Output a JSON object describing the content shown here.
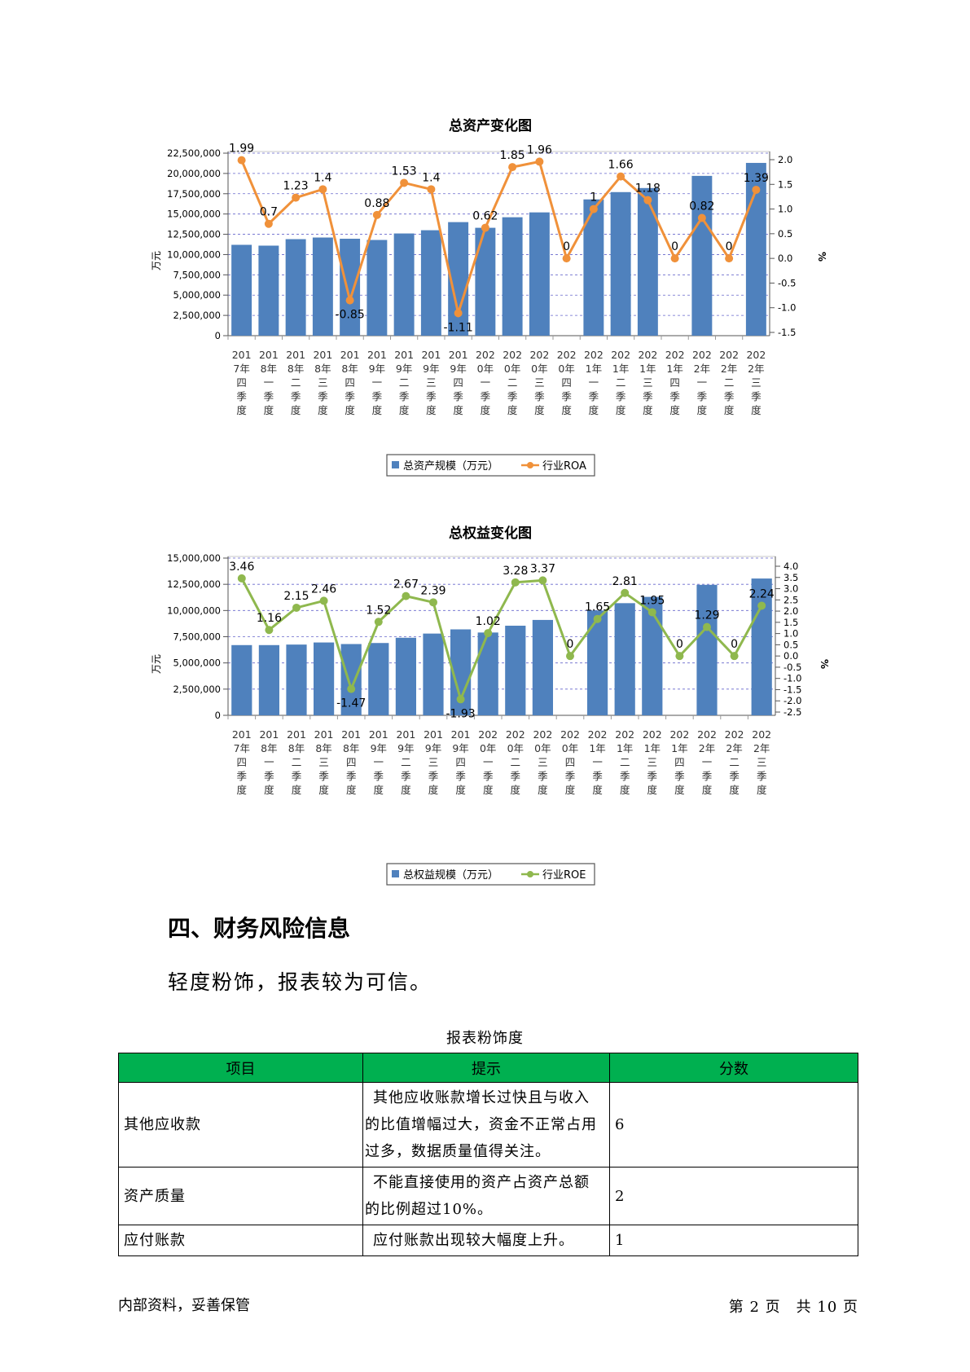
{
  "charts": {
    "assets": {
      "title": "总资产变化图",
      "left_axis_label": "万元",
      "right_axis_label": "%",
      "legend": {
        "bar": "总资产规模（万元）",
        "line": "行业ROA"
      },
      "line_color": "#f0913a"
    },
    "equity": {
      "title": "总权益变化图",
      "left_axis_label": "万元",
      "right_axis_label": "%",
      "legend": {
        "bar": "总权益规模（万元）",
        "line": "行业ROE"
      },
      "line_color": "#8fb84e"
    }
  },
  "chart_data": [
    {
      "type": "bar+line",
      "title": "总资产变化图",
      "ylabel": "万元",
      "y2label": "%",
      "categories": [
        "2017年四季度",
        "2018年一季度",
        "2018年二季度",
        "2018年三季度",
        "2018年四季度",
        "2019年一季度",
        "2019年二季度",
        "2019年三季度",
        "2019年四季度",
        "2020年一季度",
        "2020年二季度",
        "2020年三季度",
        "2020年四季度",
        "2021年一季度",
        "2021年二季度",
        "2021年三季度",
        "2021年四季度",
        "2022年一季度",
        "2022年二季度",
        "2022年三季度"
      ],
      "ylim": [
        0,
        22500000
      ],
      "yticks": [
        0,
        2500000,
        5000000,
        7500000,
        10000000,
        12500000,
        15000000,
        17500000,
        20000000,
        22500000
      ],
      "y2lim": [
        -1.5,
        2.0
      ],
      "y2ticks": [
        -1.5,
        -1.0,
        -0.5,
        0.0,
        0.5,
        1.0,
        1.5,
        2.0
      ],
      "series": [
        {
          "name": "总资产规模（万元）",
          "kind": "bar",
          "color": "#4f81bd",
          "values": [
            11200000,
            11100000,
            11900000,
            12100000,
            11950000,
            11800000,
            12600000,
            13000000,
            14000000,
            13300000,
            14600000,
            15200000,
            null,
            16800000,
            17700000,
            18200000,
            null,
            19700000,
            null,
            21300000
          ]
        },
        {
          "name": "行业ROA",
          "kind": "line",
          "color": "#f0913a",
          "values": [
            1.99,
            0.7,
            1.23,
            1.4,
            -0.85,
            0.88,
            1.53,
            1.4,
            -1.11,
            0.62,
            1.85,
            1.96,
            0,
            1,
            1.66,
            1.18,
            0,
            0.82,
            0,
            1.39
          ],
          "labels": [
            "1.99",
            "0.7",
            "1.23",
            "1.4",
            "-0.85",
            "0.88",
            "1.53",
            "1.4",
            "-1.11",
            "0.62",
            "1.85",
            "1.96",
            "0",
            "1",
            "1.66",
            "1.18",
            "0",
            "0.82",
            "0",
            "1.39"
          ]
        }
      ],
      "grid": true,
      "legend_position": "bottom"
    },
    {
      "type": "bar+line",
      "title": "总权益变化图",
      "ylabel": "万元",
      "y2label": "%",
      "categories": [
        "2017年四季度",
        "2018年一季度",
        "2018年二季度",
        "2018年三季度",
        "2018年四季度",
        "2019年一季度",
        "2019年二季度",
        "2019年三季度",
        "2019年四季度",
        "2020年一季度",
        "2020年二季度",
        "2020年三季度",
        "2020年四季度",
        "2021年一季度",
        "2021年二季度",
        "2021年三季度",
        "2021年四季度",
        "2022年一季度",
        "2022年二季度",
        "2022年三季度"
      ],
      "ylim": [
        0,
        15000000
      ],
      "yticks": [
        0,
        2500000,
        5000000,
        7500000,
        10000000,
        12500000,
        15000000
      ],
      "y2lim": [
        -2.5,
        4.0
      ],
      "y2ticks": [
        -2.5,
        -2.0,
        -1.5,
        -1.0,
        -0.5,
        0.0,
        0.5,
        1.0,
        1.5,
        2.0,
        2.5,
        3.0,
        3.5,
        4.0
      ],
      "series": [
        {
          "name": "总权益规模（万元）",
          "kind": "bar",
          "color": "#4f81bd",
          "values": [
            6700000,
            6700000,
            6750000,
            6950000,
            6800000,
            6900000,
            7400000,
            7800000,
            8200000,
            7900000,
            8550000,
            9100000,
            null,
            10000000,
            10700000,
            11300000,
            null,
            12450000,
            null,
            13050000
          ]
        },
        {
          "name": "行业ROE",
          "kind": "line",
          "color": "#8fb84e",
          "values": [
            3.46,
            1.16,
            2.15,
            2.46,
            -1.47,
            1.52,
            2.67,
            2.39,
            -1.93,
            1.02,
            3.28,
            3.37,
            0,
            1.65,
            2.81,
            1.95,
            0,
            1.29,
            0,
            2.24
          ],
          "labels": [
            "3.46",
            "1.16",
            "2.15",
            "2.46",
            "-1.47",
            "1.52",
            "2.67",
            "2.39",
            "-1.93",
            "1.02",
            "3.28",
            "3.37",
            "0",
            "1.65",
            "2.81",
            "1.95",
            "0",
            "1.29",
            "0",
            "2.24"
          ]
        }
      ],
      "grid": true,
      "legend_position": "bottom"
    }
  ],
  "section": {
    "heading": "四、财务风险信息",
    "text": "轻度粉饰，报表较为可信。"
  },
  "table": {
    "caption": "报表粉饰度",
    "header_color": "#00b050",
    "headers": [
      "项目",
      "提示",
      "分数"
    ],
    "rows": [
      {
        "item": "其他应收款",
        "hint": "其他应收账款增长过快且与收入的比值增幅过大，资金不正常占用过多，数据质量值得关注。",
        "score": "6"
      },
      {
        "item": "资产质量",
        "hint": "不能直接使用的资产占资产总额的比例超过10%。",
        "score": "2"
      },
      {
        "item": "应付账款",
        "hint": "应付账款出现较大幅度上升。",
        "score": "1"
      }
    ]
  },
  "footer": {
    "left": "内部资料，妥善保管",
    "right": "第 2 页　共 10 页"
  }
}
